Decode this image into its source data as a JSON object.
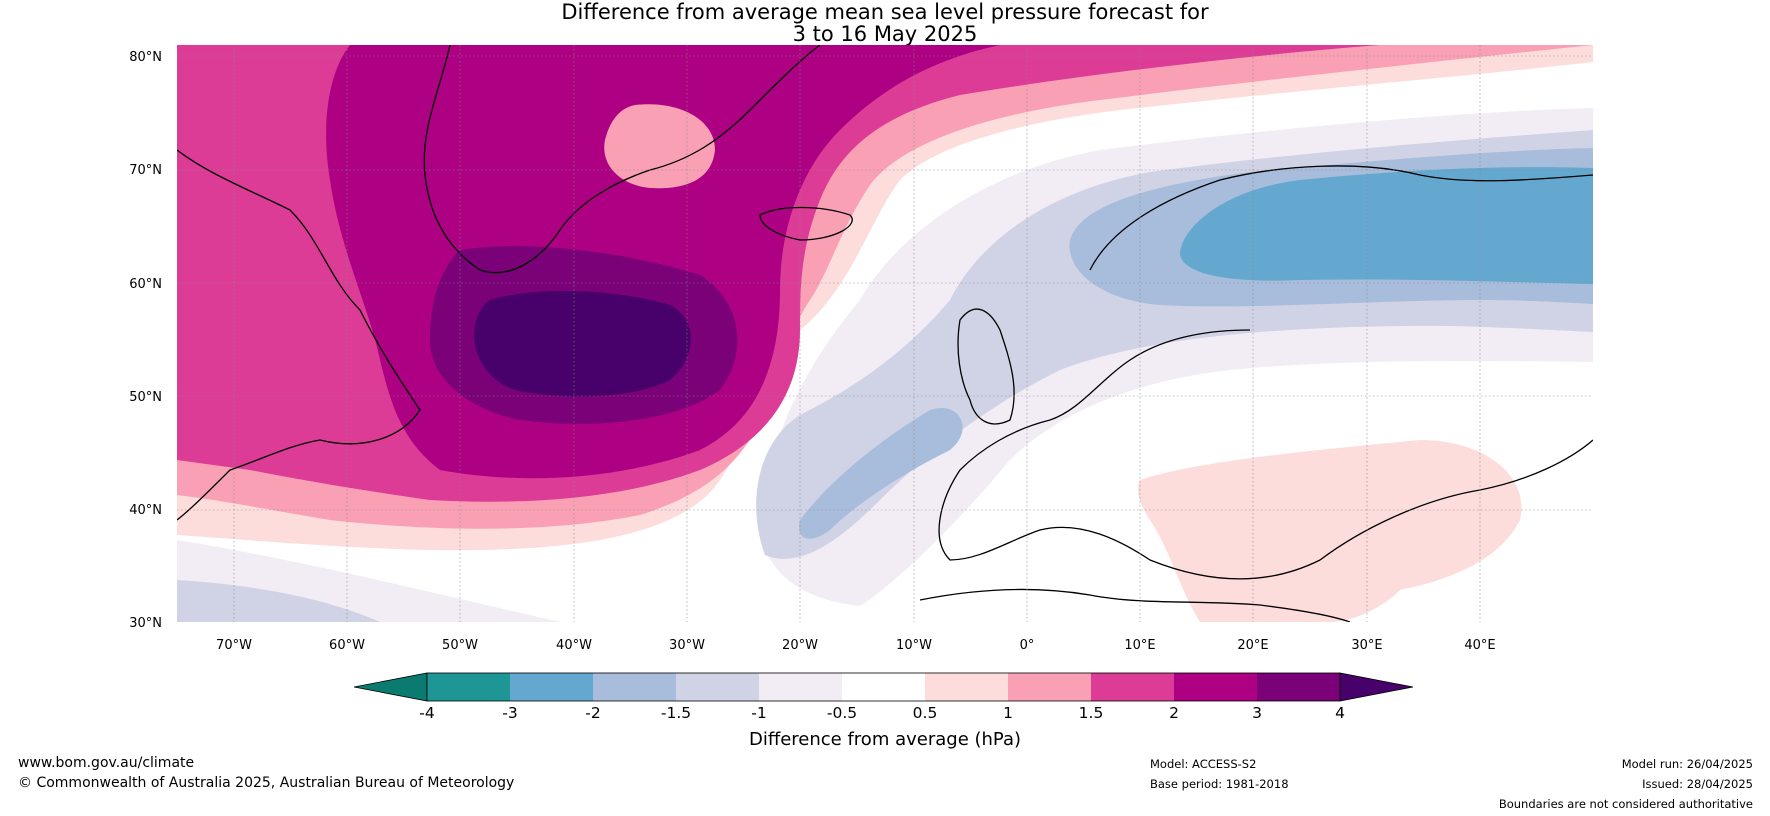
{
  "title": {
    "line1": "Difference from average mean sea level pressure forecast for",
    "line2": "3 to 16 May 2025"
  },
  "map": {
    "lat_ticks": [
      "80°N",
      "70°N",
      "60°N",
      "50°N",
      "40°N",
      "30°N"
    ],
    "lon_ticks": [
      "70°W",
      "60°W",
      "50°W",
      "40°W",
      "30°W",
      "20°W",
      "10°W",
      "0°",
      "10°E",
      "20°E",
      "30°E",
      "40°E"
    ],
    "extent": {
      "lon": [
        -75,
        50
      ],
      "lat": [
        30,
        81
      ]
    },
    "grid": true
  },
  "colorbar": {
    "label": "Difference from average (hPa)",
    "tick_labels": [
      "-4",
      "-3",
      "-2",
      "-1.5",
      "-1",
      "-0.5",
      "0.5",
      "1",
      "1.5",
      "2",
      "3",
      "4"
    ],
    "colors": {
      "under": "#0a7b6e",
      "bins": [
        "#1f9696",
        "#65a8cf",
        "#a8bcdc",
        "#d0d2e5",
        "#f2ecf5",
        "#ffffff",
        "#fddcdc",
        "#f9a0b5",
        "#dc3b96",
        "#ae0082",
        "#7a0177"
      ],
      "over": "#48006a"
    }
  },
  "footer": {
    "website": "www.bom.gov.au/climate",
    "copyright": "© Commonwealth of Australia 2025, Australian Bureau of Meteorology",
    "model": "Model: ACCESS-S2",
    "base_period": "Base period: 1981-2018",
    "model_run": "Model run: 26/04/2025",
    "issued": "Issued: 28/04/2025",
    "disclaimer": "Boundaries are not considered authoritative"
  }
}
